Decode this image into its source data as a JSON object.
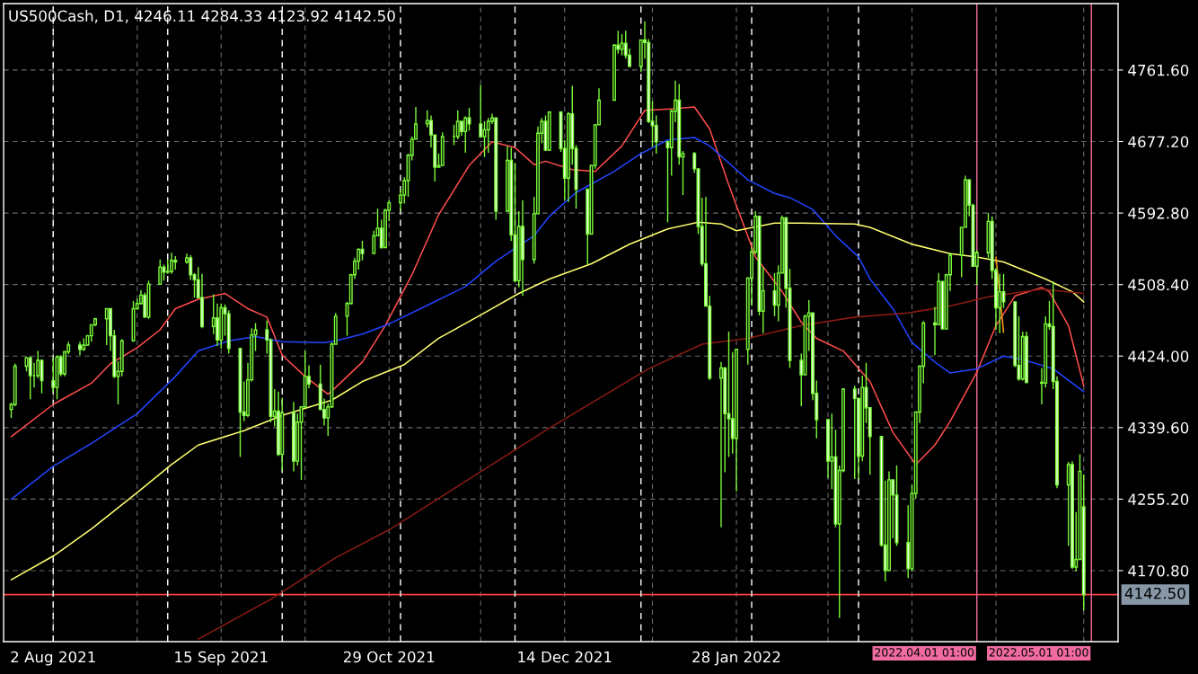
{
  "chart_data": {
    "type": "candlestick",
    "title": "US500Cash, D1, 4246.11 4284.33 4123.92 4142.50",
    "color": "#7cfc3a",
    "x": [
      "2021-07-22",
      "2021-07-23",
      "2021-07-26",
      "2021-07-27",
      "2021-07-28",
      "2021-07-29",
      "2021-07-30",
      "2021-08-02",
      "2021-08-03",
      "2021-08-04",
      "2021-08-05",
      "2021-08-06",
      "2021-08-09",
      "2021-08-10",
      "2021-08-11",
      "2021-08-12",
      "2021-08-13",
      "2021-08-16",
      "2021-08-17",
      "2021-08-18",
      "2021-08-19",
      "2021-08-20",
      "2021-08-23",
      "2021-08-24",
      "2021-08-25",
      "2021-08-26",
      "2021-08-27",
      "2021-08-30",
      "2021-08-31",
      "2021-09-01",
      "2021-09-02",
      "2021-09-03",
      "2021-09-06",
      "2021-09-07",
      "2021-09-08",
      "2021-09-09",
      "2021-09-10",
      "2021-09-13",
      "2021-09-14",
      "2021-09-15",
      "2021-09-16",
      "2021-09-17",
      "2021-09-20",
      "2021-09-21",
      "2021-09-22",
      "2021-09-23",
      "2021-09-24",
      "2021-09-27",
      "2021-09-28",
      "2021-09-29",
      "2021-09-30",
      "2021-10-01",
      "2021-10-04",
      "2021-10-05",
      "2021-10-06",
      "2021-10-07",
      "2021-10-08",
      "2021-10-11",
      "2021-10-12",
      "2021-10-13",
      "2021-10-14",
      "2021-10-15",
      "2021-10-18",
      "2021-10-19",
      "2021-10-20",
      "2021-10-21",
      "2021-10-22",
      "2021-10-25",
      "2021-10-26",
      "2021-10-27",
      "2021-10-28",
      "2021-10-29",
      "2021-11-01",
      "2021-11-02",
      "2021-11-03",
      "2021-11-04",
      "2021-11-05",
      "2021-11-08",
      "2021-11-09",
      "2021-11-10",
      "2021-11-11",
      "2021-11-12",
      "2021-11-15",
      "2021-11-16",
      "2021-11-17",
      "2021-11-18",
      "2021-11-19",
      "2021-11-22",
      "2021-11-23",
      "2021-11-24",
      "2021-11-25",
      "2021-11-26",
      "2021-11-29",
      "2021-11-30",
      "2021-12-01",
      "2021-12-02",
      "2021-12-03",
      "2021-12-06",
      "2021-12-07",
      "2021-12-08",
      "2021-12-09",
      "2021-12-10",
      "2021-12-13",
      "2021-12-14",
      "2021-12-15",
      "2021-12-16",
      "2021-12-17",
      "2021-12-20",
      "2021-12-21",
      "2021-12-22",
      "2021-12-23",
      "2021-12-27",
      "2021-12-28",
      "2021-12-29",
      "2021-12-30",
      "2021-12-31",
      "2022-01-03",
      "2022-01-04",
      "2022-01-05",
      "2022-01-06",
      "2022-01-07",
      "2022-01-10",
      "2022-01-11",
      "2022-01-12",
      "2022-01-13",
      "2022-01-14",
      "2022-01-17",
      "2022-01-18",
      "2022-01-19",
      "2022-01-20",
      "2022-01-21",
      "2022-01-24",
      "2022-01-25",
      "2022-01-26",
      "2022-01-27",
      "2022-01-28",
      "2022-01-31",
      "2022-02-01",
      "2022-02-02",
      "2022-02-03",
      "2022-02-04",
      "2022-02-07",
      "2022-02-08",
      "2022-02-09",
      "2022-02-10",
      "2022-02-11",
      "2022-02-14",
      "2022-02-15",
      "2022-02-16",
      "2022-02-17",
      "2022-02-18",
      "2022-02-21",
      "2022-02-22",
      "2022-02-23",
      "2022-02-24",
      "2022-02-25",
      "2022-02-28",
      "2022-03-01",
      "2022-03-02",
      "2022-03-03",
      "2022-03-04",
      "2022-03-07",
      "2022-03-08",
      "2022-03-09",
      "2022-03-10",
      "2022-03-11",
      "2022-03-14",
      "2022-03-15",
      "2022-03-16",
      "2022-03-17",
      "2022-03-18",
      "2022-03-21",
      "2022-03-22",
      "2022-03-23",
      "2022-03-24",
      "2022-03-25",
      "2022-03-28",
      "2022-03-29",
      "2022-03-30",
      "2022-03-31",
      "2022-04-01",
      "2022-04-04",
      "2022-04-05",
      "2022-04-06",
      "2022-04-07",
      "2022-04-08",
      "2022-04-11",
      "2022-04-12",
      "2022-04-13",
      "2022-04-14",
      "2022-04-18",
      "2022-04-19",
      "2022-04-20",
      "2022-04-21",
      "2022-04-22",
      "2022-04-25",
      "2022-04-26",
      "2022-04-27",
      "2022-04-28",
      "2022-04-29"
    ],
    "ohlc": [
      [
        4361,
        4369,
        4351,
        4367
      ],
      [
        4367,
        4415,
        4365,
        4412
      ],
      [
        4412,
        4423,
        4406,
        4422
      ],
      [
        4422,
        4424,
        4373,
        4401
      ],
      [
        4401,
        4416,
        4387,
        4401
      ],
      [
        4401,
        4430,
        4398,
        4419
      ],
      [
        4419,
        4420,
        4380,
        4395
      ],
      [
        4395,
        4423,
        4381,
        4387
      ],
      [
        4387,
        4425,
        4373,
        4423
      ],
      [
        4423,
        4425,
        4400,
        4403
      ],
      [
        4403,
        4430,
        4400,
        4429
      ],
      [
        4429,
        4441,
        4426,
        4437
      ],
      [
        4437,
        4441,
        4425,
        4432
      ],
      [
        4432,
        4445,
        4430,
        4437
      ],
      [
        4437,
        4449,
        4436,
        4448
      ],
      [
        4448,
        4461,
        4441,
        4461
      ],
      [
        4461,
        4469,
        4459,
        4468
      ],
      [
        4468,
        4480,
        4437,
        4480
      ],
      [
        4480,
        4480,
        4430,
        4448
      ],
      [
        4448,
        4455,
        4398,
        4400
      ],
      [
        4400,
        4418,
        4367,
        4406
      ],
      [
        4406,
        4444,
        4400,
        4442
      ],
      [
        4442,
        4489,
        4441,
        4480
      ],
      [
        4480,
        4492,
        4479,
        4486
      ],
      [
        4486,
        4502,
        4485,
        4496
      ],
      [
        4496,
        4499,
        4469,
        4470
      ],
      [
        4470,
        4513,
        4468,
        4509
      ],
      [
        4509,
        4538,
        4508,
        4529
      ],
      [
        4529,
        4532,
        4513,
        4523
      ],
      [
        4523,
        4538,
        4521,
        4524
      ],
      [
        4524,
        4546,
        4521,
        4537
      ],
      [
        4537,
        4542,
        4526,
        4535
      ],
      [
        4535,
        4545,
        4533,
        4540
      ],
      [
        4540,
        4543,
        4514,
        4520
      ],
      [
        4520,
        4522,
        4493,
        4514
      ],
      [
        4514,
        4529,
        4492,
        4493
      ],
      [
        4493,
        4521,
        4457,
        4459
      ],
      [
        4459,
        4497,
        4450,
        4469
      ],
      [
        4469,
        4486,
        4436,
        4443
      ],
      [
        4443,
        4486,
        4433,
        4481
      ],
      [
        4481,
        4485,
        4448,
        4474
      ],
      [
        4474,
        4478,
        4427,
        4433
      ],
      [
        4433,
        4433,
        4305,
        4358
      ],
      [
        4358,
        4394,
        4347,
        4354
      ],
      [
        4354,
        4416,
        4352,
        4396
      ],
      [
        4396,
        4457,
        4394,
        4449
      ],
      [
        4449,
        4463,
        4430,
        4455
      ],
      [
        4455,
        4466,
        4427,
        4443
      ],
      [
        4443,
        4445,
        4346,
        4353
      ],
      [
        4353,
        4385,
        4341,
        4359
      ],
      [
        4359,
        4382,
        4306,
        4308
      ],
      [
        4308,
        4375,
        4289,
        4357
      ],
      [
        4357,
        4370,
        4288,
        4300
      ],
      [
        4300,
        4356,
        4295,
        4346
      ],
      [
        4346,
        4365,
        4278,
        4364
      ],
      [
        4364,
        4430,
        4363,
        4400
      ],
      [
        4400,
        4413,
        4386,
        4391
      ],
      [
        4391,
        4414,
        4360,
        4361
      ],
      [
        4361,
        4374,
        4342,
        4351
      ],
      [
        4351,
        4368,
        4330,
        4364
      ],
      [
        4364,
        4440,
        4363,
        4438
      ],
      [
        4438,
        4475,
        4438,
        4471
      ],
      [
        4471,
        4488,
        4448,
        4486
      ],
      [
        4486,
        4521,
        4485,
        4520
      ],
      [
        4520,
        4540,
        4515,
        4536
      ],
      [
        4536,
        4551,
        4526,
        4550
      ],
      [
        4550,
        4560,
        4537,
        4545
      ],
      [
        4545,
        4572,
        4544,
        4566
      ],
      [
        4566,
        4598,
        4566,
        4575
      ],
      [
        4575,
        4585,
        4551,
        4552
      ],
      [
        4552,
        4598,
        4552,
        4596
      ],
      [
        4596,
        4608,
        4583,
        4605
      ],
      [
        4605,
        4621,
        4595,
        4614
      ],
      [
        4614,
        4635,
        4604,
        4631
      ],
      [
        4631,
        4663,
        4612,
        4661
      ],
      [
        4661,
        4683,
        4655,
        4680
      ],
      [
        4680,
        4718,
        4680,
        4698
      ],
      [
        4698,
        4714,
        4694,
        4702
      ],
      [
        4702,
        4708,
        4670,
        4685
      ],
      [
        4685,
        4685,
        4630,
        4647
      ],
      [
        4647,
        4663,
        4647,
        4649
      ],
      [
        4649,
        4688,
        4648,
        4683
      ],
      [
        4683,
        4697,
        4673,
        4683
      ],
      [
        4683,
        4714,
        4680,
        4701
      ],
      [
        4701,
        4701,
        4684,
        4689
      ],
      [
        4689,
        4707,
        4664,
        4705
      ],
      [
        4705,
        4717,
        4690,
        4698
      ],
      [
        4698,
        4744,
        4682,
        4683
      ],
      [
        4683,
        4701,
        4659,
        4691
      ],
      [
        4691,
        4705,
        4664,
        4701
      ],
      [
        4701,
        4710,
        4698,
        4705
      ],
      [
        4705,
        4705,
        4585,
        4595
      ],
      [
        4595,
        4672,
        4595,
        4655
      ],
      [
        4655,
        4670,
        4560,
        4567
      ],
      [
        4567,
        4652,
        4511,
        4513
      ],
      [
        4513,
        4595,
        4505,
        4577
      ],
      [
        4577,
        4608,
        4495,
        4538
      ],
      [
        4538,
        4612,
        4533,
        4592
      ],
      [
        4592,
        4695,
        4592,
        4687
      ],
      [
        4687,
        4705,
        4675,
        4701
      ],
      [
        4701,
        4708,
        4666,
        4667
      ],
      [
        4667,
        4713,
        4666,
        4712
      ],
      [
        4712,
        4713,
        4665,
        4669
      ],
      [
        4669,
        4679,
        4608,
        4634
      ],
      [
        4634,
        4712,
        4606,
        4710
      ],
      [
        4710,
        4743,
        4650,
        4669
      ],
      [
        4669,
        4673,
        4598,
        4621
      ],
      [
        4621,
        4621,
        4532,
        4568
      ],
      [
        4568,
        4650,
        4568,
        4649
      ],
      [
        4649,
        4698,
        4645,
        4697
      ],
      [
        4697,
        4740,
        4697,
        4726
      ],
      [
        4726,
        4792,
        4726,
        4791
      ],
      [
        4791,
        4808,
        4781,
        4786
      ],
      [
        4786,
        4804,
        4779,
        4793
      ],
      [
        4793,
        4808,
        4775,
        4779
      ],
      [
        4779,
        4787,
        4765,
        4766
      ],
      [
        4766,
        4797,
        4759,
        4797
      ],
      [
        4797,
        4819,
        4775,
        4794
      ],
      [
        4794,
        4798,
        4699,
        4701
      ],
      [
        4701,
        4725,
        4671,
        4696
      ],
      [
        4696,
        4708,
        4663,
        4677
      ],
      [
        4677,
        4678,
        4582,
        4670
      ],
      [
        4670,
        4715,
        4637,
        4713
      ],
      [
        4713,
        4749,
        4700,
        4726
      ],
      [
        4726,
        4745,
        4650,
        4659
      ],
      [
        4659,
        4666,
        4614,
        4663
      ],
      [
        4663,
        4665,
        4640,
        4645
      ],
      [
        4645,
        4645,
        4568,
        4577
      ],
      [
        4577,
        4611,
        4530,
        4533
      ],
      [
        4533,
        4612,
        4483,
        4483
      ],
      [
        4483,
        4495,
        4396,
        4398
      ],
      [
        4398,
        4417,
        4222,
        4410
      ],
      [
        4410,
        4411,
        4287,
        4356
      ],
      [
        4356,
        4453,
        4305,
        4350
      ],
      [
        4350,
        4429,
        4309,
        4327
      ],
      [
        4327,
        4432,
        4264,
        4432
      ],
      [
        4432,
        4517,
        4414,
        4516
      ],
      [
        4516,
        4552,
        4483,
        4547
      ],
      [
        4547,
        4595,
        4544,
        4589
      ],
      [
        4589,
        4590,
        4472,
        4477
      ],
      [
        4477,
        4529,
        4451,
        4501
      ],
      [
        4501,
        4522,
        4471,
        4484
      ],
      [
        4484,
        4531,
        4465,
        4522
      ],
      [
        4522,
        4590,
        4522,
        4587
      ],
      [
        4587,
        4588,
        4481,
        4504
      ],
      [
        4504,
        4527,
        4410,
        4419
      ],
      [
        4419,
        4427,
        4365,
        4402
      ],
      [
        4402,
        4473,
        4402,
        4471
      ],
      [
        4471,
        4490,
        4430,
        4475
      ],
      [
        4475,
        4475,
        4372,
        4380
      ],
      [
        4380,
        4395,
        4327,
        4349
      ],
      [
        4349,
        4350,
        4280,
        4300
      ],
      [
        4300,
        4356,
        4267,
        4305
      ],
      [
        4305,
        4337,
        4222,
        4226
      ],
      [
        4226,
        4295,
        4115,
        4289
      ],
      [
        4289,
        4386,
        4287,
        4385
      ],
      [
        4385,
        4389,
        4279,
        4374
      ],
      [
        4374,
        4375,
        4279,
        4306
      ],
      [
        4306,
        4401,
        4300,
        4387
      ],
      [
        4387,
        4416,
        4345,
        4363
      ],
      [
        4363,
        4363,
        4284,
        4329
      ],
      [
        4329,
        4329,
        4199,
        4201
      ],
      [
        4201,
        4277,
        4158,
        4171
      ],
      [
        4171,
        4288,
        4171,
        4278
      ],
      [
        4278,
        4278,
        4209,
        4260
      ],
      [
        4260,
        4295,
        4200,
        4204
      ],
      [
        4204,
        4248,
        4162,
        4173
      ],
      [
        4173,
        4272,
        4170,
        4262
      ],
      [
        4262,
        4358,
        4256,
        4358
      ],
      [
        4358,
        4413,
        4345,
        4412
      ],
      [
        4412,
        4465,
        4392,
        4463
      ],
      [
        4463,
        4482,
        4425,
        4461
      ],
      [
        4461,
        4522,
        4461,
        4512
      ],
      [
        4512,
        4512,
        4456,
        4456
      ],
      [
        4456,
        4521,
        4456,
        4520
      ],
      [
        4520,
        4546,
        4501,
        4543
      ],
      [
        4543,
        4576,
        4517,
        4576
      ],
      [
        4576,
        4637,
        4576,
        4632
      ],
      [
        4632,
        4633,
        4589,
        4602
      ],
      [
        4602,
        4604,
        4530,
        4530
      ],
      [
        4530,
        4549,
        4508,
        4546
      ],
      [
        4546,
        4593,
        4540,
        4583
      ],
      [
        4583,
        4589,
        4515,
        4525
      ],
      [
        4525,
        4528,
        4455,
        4481
      ],
      [
        4481,
        4521,
        4451,
        4500
      ],
      [
        4500,
        4521,
        4481,
        4488
      ],
      [
        4488,
        4488,
        4411,
        4413
      ],
      [
        4413,
        4471,
        4395,
        4397
      ],
      [
        4397,
        4453,
        4395,
        4447
      ],
      [
        4447,
        4453,
        4392,
        4393
      ],
      [
        4393,
        4410,
        4367,
        4392
      ],
      [
        4392,
        4471,
        4387,
        4462
      ],
      [
        4462,
        4489,
        4455,
        4459
      ],
      [
        4459,
        4512,
        4385,
        4394
      ],
      [
        4394,
        4400,
        4268,
        4272
      ],
      [
        4272,
        4299,
        4200,
        4296
      ],
      [
        4296,
        4300,
        4173,
        4175
      ],
      [
        4175,
        4240,
        4170,
        4184
      ],
      [
        4184,
        4308,
        4184,
        4288
      ],
      [
        4246.11,
        4284.33,
        4123.92,
        4142.5
      ]
    ],
    "series": [
      {
        "type": "line",
        "color": "#ff4d4d",
        "x": [
          "2021-07-22",
          "2021-08-02",
          "2021-08-12",
          "2021-08-17",
          "2021-08-24",
          "2021-08-30",
          "2021-09-03",
          "2021-09-09",
          "2021-09-16",
          "2021-09-22",
          "2021-09-27",
          "2021-10-01",
          "2021-10-07",
          "2021-10-13",
          "2021-10-15",
          "2021-10-22",
          "2021-10-28",
          "2021-11-04",
          "2021-11-11",
          "2021-11-19",
          "2021-11-25",
          "2021-12-01",
          "2021-12-06",
          "2021-12-09",
          "2021-12-16",
          "2021-12-22",
          "2021-12-29",
          "2022-01-04",
          "2022-01-12",
          "2022-01-17",
          "2022-01-21",
          "2022-01-26",
          "2022-02-02",
          "2022-02-09",
          "2022-02-14",
          "2022-02-18",
          "2022-02-25",
          "2022-03-04",
          "2022-03-10",
          "2022-03-16",
          "2022-03-21",
          "2022-03-25",
          "2022-04-01",
          "2022-04-06",
          "2022-04-11",
          "2022-04-18",
          "2022-04-20",
          "2022-04-25",
          "2022-04-29"
        ],
        "values": [
          4329,
          4367,
          4392,
          4415,
          4434,
          4455,
          4480,
          4491,
          4498,
          4480,
          4470,
          4425,
          4400,
          4379,
          4387,
          4417,
          4460,
          4520,
          4591,
          4649,
          4677,
          4670,
          4650,
          4654,
          4644,
          4642,
          4672,
          4714,
          4716,
          4718,
          4692,
          4626,
          4541,
          4500,
          4464,
          4445,
          4430,
          4394,
          4334,
          4296,
          4319,
          4347,
          4405,
          4460,
          4495,
          4505,
          4500,
          4460,
          4389
        ]
      },
      {
        "type": "line",
        "color": "#2244ff",
        "x": [
          "2021-07-22",
          "2021-08-02",
          "2021-08-12",
          "2021-08-24",
          "2021-09-03",
          "2021-09-09",
          "2021-09-17",
          "2021-09-24",
          "2021-10-01",
          "2021-10-12",
          "2021-10-15",
          "2021-10-22",
          "2021-10-29",
          "2021-11-09",
          "2021-11-18",
          "2021-11-26",
          "2021-12-06",
          "2021-12-10",
          "2021-12-17",
          "2021-12-27",
          "2022-01-03",
          "2022-01-10",
          "2022-01-17",
          "2022-01-21",
          "2022-01-26",
          "2022-01-31",
          "2022-02-07",
          "2022-02-11",
          "2022-02-17",
          "2022-02-23",
          "2022-03-01",
          "2022-03-04",
          "2022-03-10",
          "2022-03-15",
          "2022-03-21",
          "2022-03-25",
          "2022-04-01",
          "2022-04-08",
          "2022-04-13",
          "2022-04-21",
          "2022-04-29"
        ],
        "values": [
          4255,
          4294,
          4321,
          4356,
          4400,
          4430,
          4442,
          4447,
          4441,
          4440,
          4442,
          4450,
          4462,
          4486,
          4506,
          4536,
          4566,
          4589,
          4617,
          4642,
          4663,
          4679,
          4682,
          4672,
          4652,
          4632,
          4616,
          4611,
          4597,
          4566,
          4541,
          4515,
          4480,
          4440,
          4417,
          4404,
          4409,
          4424,
          4420,
          4409,
          4382
        ]
      },
      {
        "type": "line",
        "color": "#ffff70",
        "x": [
          "2021-07-22",
          "2021-08-02",
          "2021-08-12",
          "2021-08-24",
          "2021-09-02",
          "2021-09-09",
          "2021-09-21",
          "2021-10-01",
          "2021-10-14",
          "2021-10-22",
          "2021-11-02",
          "2021-11-11",
          "2021-11-23",
          "2021-12-02",
          "2021-12-10",
          "2021-12-21",
          "2021-12-31",
          "2022-01-10",
          "2022-01-18",
          "2022-01-24",
          "2022-01-28",
          "2022-02-07",
          "2022-02-14",
          "2022-02-28",
          "2022-03-04",
          "2022-03-15",
          "2022-03-25",
          "2022-04-01",
          "2022-04-08",
          "2022-04-19",
          "2022-04-26",
          "2022-04-29"
        ],
        "values": [
          4160,
          4188,
          4220,
          4263,
          4296,
          4319,
          4336,
          4354,
          4372,
          4394,
          4414,
          4445,
          4475,
          4498,
          4515,
          4533,
          4556,
          4574,
          4582,
          4580,
          4572,
          4581,
          4581,
          4580,
          4576,
          4556,
          4545,
          4541,
          4535,
          4515,
          4500,
          4488
        ]
      },
      {
        "type": "line",
        "color": "#8a1c12",
        "x": [
          "2021-09-09",
          "2021-09-28",
          "2021-10-15",
          "2021-10-29",
          "2021-11-12",
          "2021-11-26",
          "2021-12-10",
          "2021-12-23",
          "2022-01-05",
          "2022-01-19",
          "2022-01-31",
          "2022-02-14",
          "2022-02-28",
          "2022-03-14",
          "2022-03-25",
          "2022-04-04",
          "2022-04-18",
          "2022-04-29"
        ],
        "values": [
          4090,
          4137,
          4186,
          4219,
          4259,
          4299,
          4339,
          4374,
          4409,
          4438,
          4445,
          4460,
          4470,
          4475,
          4483,
          4494,
          4503,
          4498
        ]
      },
      {
        "type": "line",
        "color": "#ff9a1a",
        "x": [
          "2022-04-06",
          "2022-04-08"
        ],
        "values": [
          4541,
          4452
        ]
      }
    ],
    "xlim": [
      "2021-07-20",
      "2022-05-08"
    ],
    "xticks": [
      {
        "value": "2021-08-02",
        "label": "2 Aug 2021"
      },
      {
        "value": "2021-08-24",
        "label": null
      },
      {
        "value": "2021-09-15",
        "label": "15 Sep 2021"
      },
      {
        "value": "2021-10-07",
        "label": null
      },
      {
        "value": "2021-10-29",
        "label": "29 Oct 2021"
      },
      {
        "value": "2021-11-22",
        "label": null
      },
      {
        "value": "2021-12-14",
        "label": "14 Dec 2021"
      },
      {
        "value": "2022-01-06",
        "label": null
      },
      {
        "value": "2022-01-28",
        "label": "28 Jan 2022"
      },
      {
        "value": "2022-02-21",
        "label": null
      },
      {
        "value": "2022-03-15",
        "label": null
      },
      {
        "value": "2022-04-06",
        "label": null
      },
      {
        "value": "2022-04-29",
        "label": null
      }
    ],
    "ylim": [
      4087,
      4840
    ],
    "yticks": [
      {
        "value": 4170.8,
        "label": "4170.80"
      },
      {
        "value": 4255.2,
        "label": "4255.20"
      },
      {
        "value": 4339.6,
        "label": "4339.60"
      },
      {
        "value": 4424,
        "label": "4424.00"
      },
      {
        "value": 4508.4,
        "label": "4508.40"
      },
      {
        "value": 4592.8,
        "label": "4592.80"
      },
      {
        "value": 4677.2,
        "label": "4677.20"
      },
      {
        "value": 4761.6,
        "label": "4761.60"
      }
    ],
    "grid": true,
    "ref_lines": [
      {
        "axis": "y",
        "value": 4142.5,
        "label": "4142.50",
        "color": "#ff4040",
        "line_style": "solid"
      },
      {
        "axis": "x",
        "value": "2022-04-01",
        "label": "2022.04.01 01:00",
        "color": "#f06ba0",
        "line_style": "solid"
      },
      {
        "axis": "x",
        "value": "2022-05-01",
        "label": "2022.05.01 01:00",
        "color": "#f06ba0",
        "line_style": "solid"
      },
      {
        "axis": "x",
        "value": "2021-08-02",
        "color": "#ffffff",
        "line_style": "dashed"
      },
      {
        "axis": "x",
        "value": "2021-09-01",
        "color": "#ffffff",
        "line_style": "dashed"
      },
      {
        "axis": "x",
        "value": "2021-10-01",
        "color": "#ffffff",
        "line_style": "dashed"
      },
      {
        "axis": "x",
        "value": "2021-11-01",
        "color": "#ffffff",
        "line_style": "dashed"
      },
      {
        "axis": "x",
        "value": "2021-12-01",
        "color": "#ffffff",
        "line_style": "dashed"
      },
      {
        "axis": "x",
        "value": "2022-01-03",
        "color": "#ffffff",
        "line_style": "dashed"
      },
      {
        "axis": "x",
        "value": "2022-02-01",
        "color": "#ffffff",
        "line_style": "dashed"
      },
      {
        "axis": "x",
        "value": "2022-03-01",
        "color": "#ffffff",
        "line_style": "dashed"
      }
    ]
  }
}
